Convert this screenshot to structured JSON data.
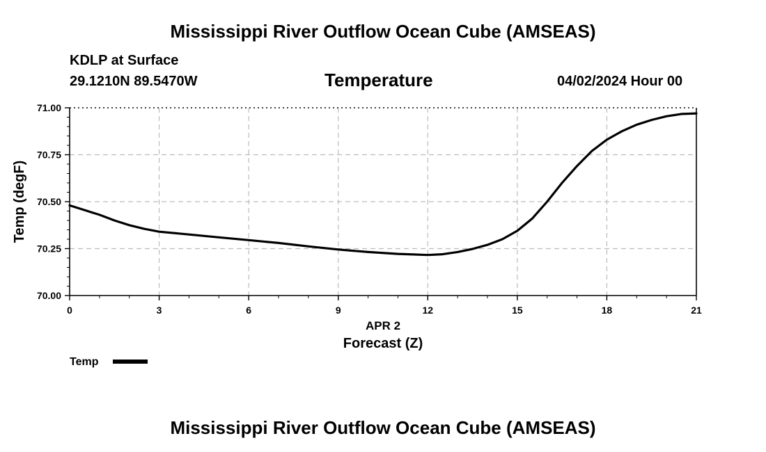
{
  "page": {
    "title_top": "Mississippi River Outflow Ocean Cube (AMSEAS)",
    "title_bottom": "Mississippi River Outflow Ocean Cube (AMSEAS)",
    "station": "KDLP at Surface",
    "coords": "29.1210N  89.5470W",
    "variable": "Temperature",
    "datetime": "04/02/2024 Hour 00"
  },
  "chart_data": {
    "type": "line",
    "title": "Temperature",
    "xlabel": "Forecast (Z)",
    "xsublabel": "APR 2",
    "ylabel": "Temp (degF)",
    "xlim": [
      0,
      21
    ],
    "ylim": [
      70.0,
      71.0
    ],
    "xticks": [
      0,
      3,
      6,
      9,
      12,
      15,
      18,
      21
    ],
    "xtick_labels": [
      "0",
      "3",
      "6",
      "9",
      "12",
      "15",
      "18",
      "21"
    ],
    "yticks": [
      70.0,
      70.25,
      70.5,
      70.75,
      71.0
    ],
    "ytick_labels": [
      "70.00",
      "70.25",
      "70.50",
      "70.75",
      "71.00"
    ],
    "grid": true,
    "legend": "bottom-left",
    "series": [
      {
        "name": "Temp",
        "color": "#000000",
        "x": [
          0,
          1,
          1.5,
          2,
          2.5,
          3,
          4,
          5,
          6,
          7,
          8,
          9,
          10,
          11,
          11.5,
          12,
          12.5,
          13,
          13.5,
          14,
          14.5,
          15,
          15.5,
          16,
          16.5,
          17,
          17.5,
          18,
          18.5,
          19,
          19.5,
          20,
          20.5,
          21
        ],
        "values": [
          70.48,
          70.43,
          70.4,
          70.375,
          70.355,
          70.34,
          70.325,
          70.31,
          70.295,
          70.28,
          70.262,
          70.245,
          70.232,
          70.222,
          70.219,
          70.216,
          70.22,
          70.232,
          70.248,
          70.27,
          70.3,
          70.345,
          70.41,
          70.5,
          70.6,
          70.69,
          70.77,
          70.83,
          70.875,
          70.91,
          70.935,
          70.955,
          70.967,
          70.97
        ]
      }
    ]
  }
}
